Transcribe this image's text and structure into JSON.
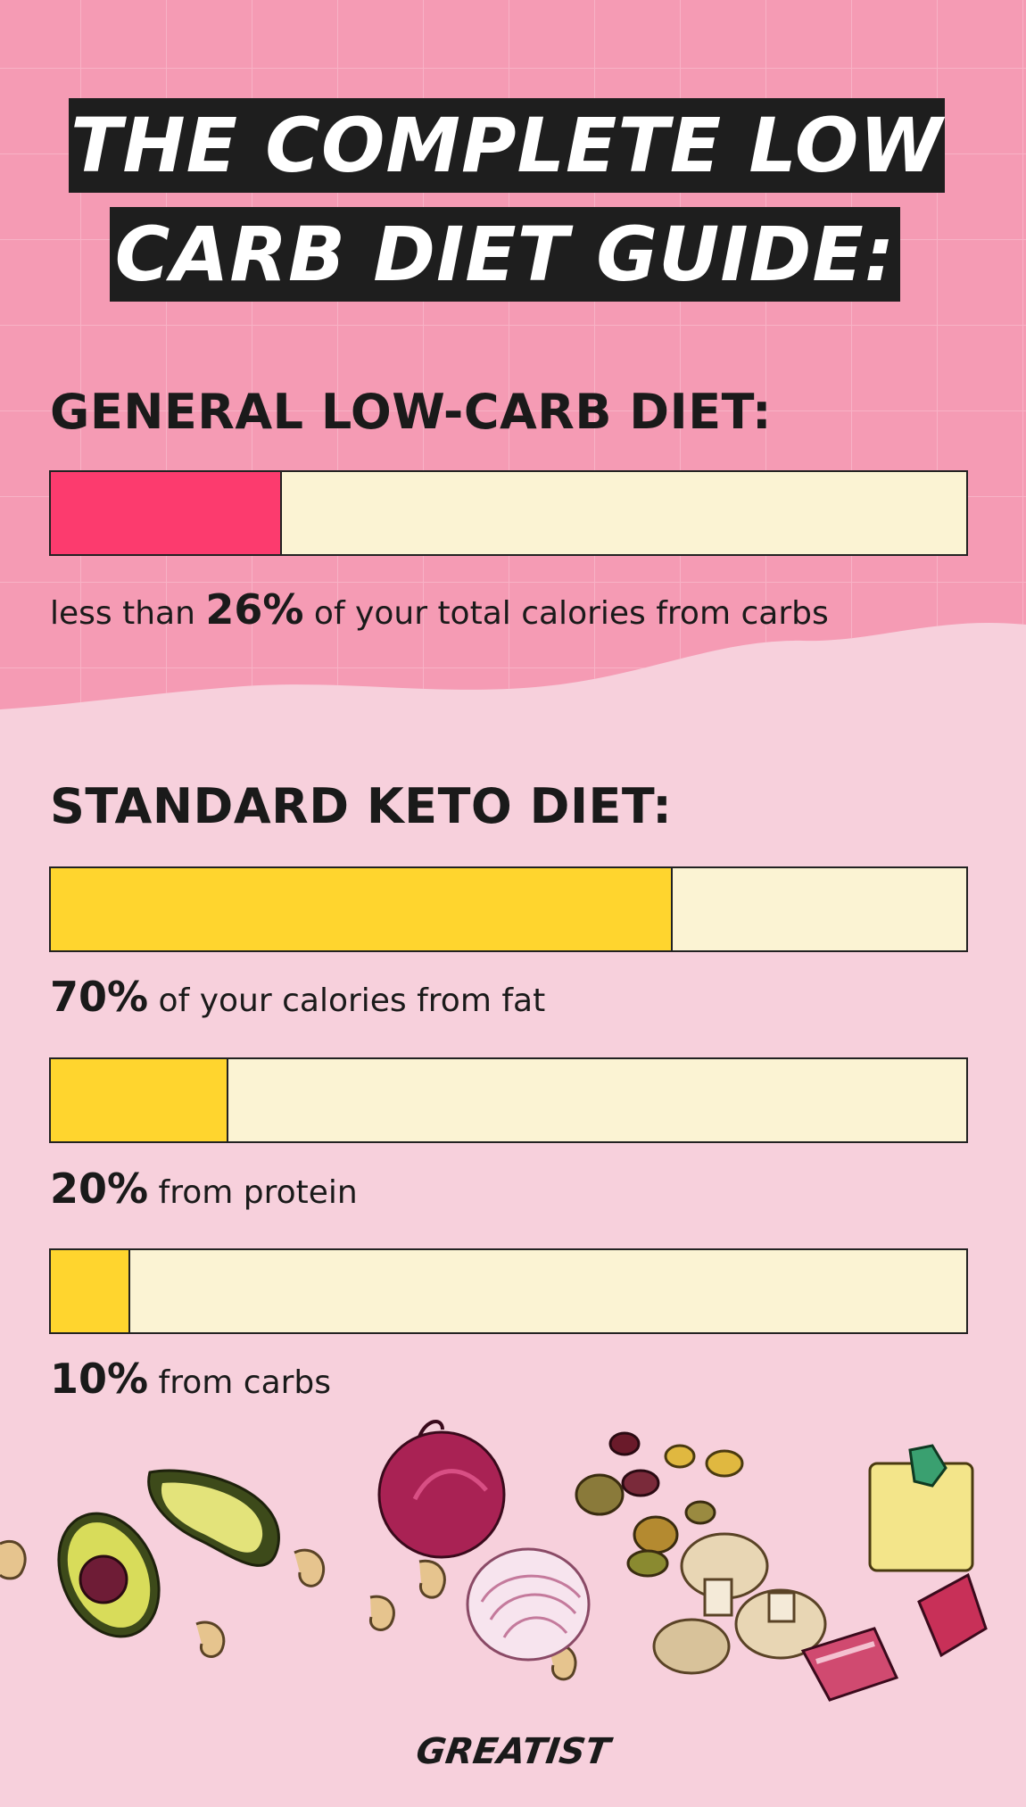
{
  "title": {
    "line1": "THE COMPLETE LOW",
    "line2": "CARB DIET GUIDE:"
  },
  "sections": {
    "general": {
      "heading": "GENERAL LOW-CARB DIET:",
      "bars": [
        {
          "percent": 26,
          "color": "#fc3b6e",
          "caption_pre": "less than ",
          "caption_value": "26%",
          "caption_post": " of your total calories from carbs"
        }
      ]
    },
    "keto": {
      "heading": "STANDARD KETO DIET:",
      "bars": [
        {
          "percent": 70,
          "color": "#ffd52e",
          "caption_pre": "",
          "caption_value": "70%",
          "caption_post": " of your calories from fat"
        },
        {
          "percent": 20,
          "color": "#ffd52e",
          "caption_pre": "",
          "caption_value": "20%",
          "caption_post": " from protein"
        },
        {
          "percent": 10,
          "color": "#ffd52e",
          "caption_pre": "",
          "caption_value": "10%",
          "caption_post": " from carbs"
        }
      ]
    }
  },
  "colors": {
    "top_background": "#f59bb4",
    "bottom_background": "#f7d0dc",
    "bar_empty": "#fbf3d3",
    "carb_fill": "#fc3b6e",
    "keto_fill": "#ffd52e"
  },
  "illustration_icons": [
    "avocado-icon",
    "cashew-icon",
    "red-onion-icon",
    "mixed-nuts-icon",
    "mushroom-icon",
    "meat-icon",
    "cheese-icon"
  ],
  "logo": "GREATIST"
}
